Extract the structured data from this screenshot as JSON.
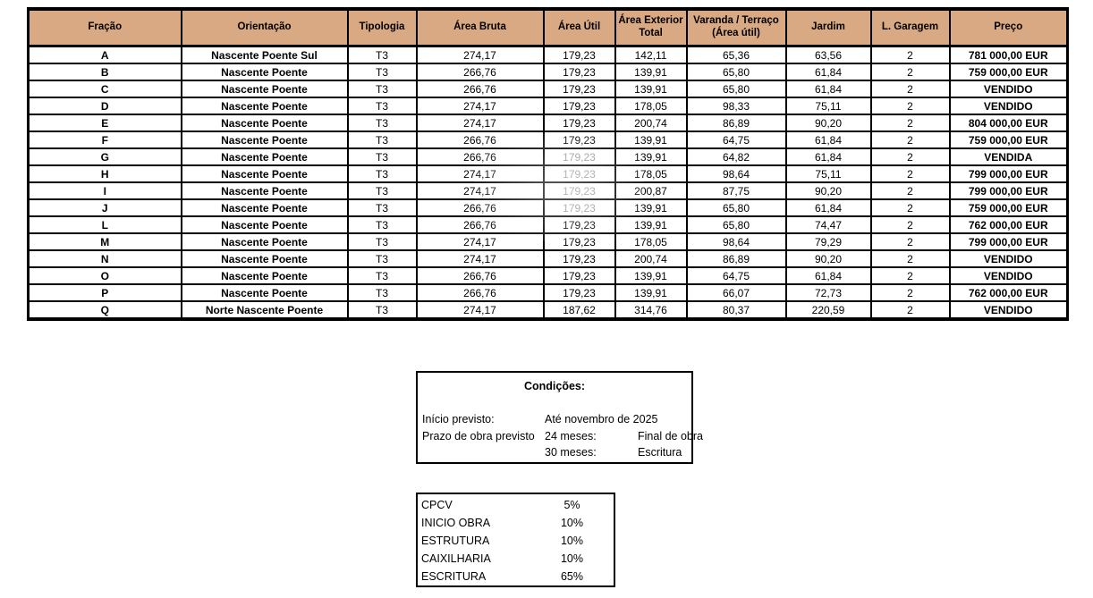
{
  "colors": {
    "header_bg": "#d8a982",
    "border": "#000000",
    "dim_text": "#98989a"
  },
  "table": {
    "columns": [
      {
        "key": "fracao",
        "label": "Fração"
      },
      {
        "key": "orientacao",
        "label": "Orientação"
      },
      {
        "key": "tipologia",
        "label": "Tipologia"
      },
      {
        "key": "area_bruta",
        "label": "Área Bruta"
      },
      {
        "key": "area_util",
        "label": "Área Útil"
      },
      {
        "key": "area_exterior",
        "label": "Área Exterior Total"
      },
      {
        "key": "varanda",
        "label": "Varanda / Terraço (Área útil)"
      },
      {
        "key": "jardim",
        "label": "Jardim"
      },
      {
        "key": "garagem",
        "label": "L. Garagem"
      },
      {
        "key": "preco",
        "label": "Preço"
      }
    ],
    "rows": [
      {
        "fracao": "A",
        "orientacao": "Nascente Poente Sul",
        "tipologia": "T3",
        "area_bruta": "274,17",
        "area_util": "179,23",
        "area_exterior": "142,11",
        "varanda": "65,36",
        "jardim": "63,56",
        "garagem": "2",
        "preco": "781 000,00 EUR"
      },
      {
        "fracao": "B",
        "orientacao": "Nascente Poente",
        "tipologia": "T3",
        "area_bruta": "266,76",
        "area_util": "179,23",
        "area_exterior": "139,91",
        "varanda": "65,80",
        "jardim": "61,84",
        "garagem": "2",
        "preco": "759 000,00 EUR"
      },
      {
        "fracao": "C",
        "orientacao": "Nascente Poente",
        "tipologia": "T3",
        "area_bruta": "266,76",
        "area_util": "179,23",
        "area_exterior": "139,91",
        "varanda": "65,80",
        "jardim": "61,84",
        "garagem": "2",
        "preco": "VENDIDO"
      },
      {
        "fracao": "D",
        "orientacao": "Nascente Poente",
        "tipologia": "T3",
        "area_bruta": "274,17",
        "area_util": "179,23",
        "area_exterior": "178,05",
        "varanda": "98,33",
        "jardim": "75,11",
        "garagem": "2",
        "preco": "VENDIDO"
      },
      {
        "fracao": "E",
        "orientacao": "Nascente Poente",
        "tipologia": "T3",
        "area_bruta": "274,17",
        "area_util": "179,23",
        "area_exterior": "200,74",
        "varanda": "86,89",
        "jardim": "90,20",
        "garagem": "2",
        "preco": "804 000,00 EUR"
      },
      {
        "fracao": "F",
        "orientacao": "Nascente Poente",
        "tipologia": "T3",
        "area_bruta": "266,76",
        "area_util": "179,23",
        "area_exterior": "139,91",
        "varanda": "64,75",
        "jardim": "61,84",
        "garagem": "2",
        "preco": "759 000,00 EUR"
      },
      {
        "fracao": "G",
        "orientacao": "Nascente Poente",
        "tipologia": "T3",
        "area_bruta": "266,76",
        "area_util": "179,23",
        "area_exterior": "139,91",
        "varanda": "64,82",
        "jardim": "61,84",
        "garagem": "2",
        "preco": "VENDIDA",
        "dim_util": true
      },
      {
        "fracao": "H",
        "orientacao": "Nascente Poente",
        "tipologia": "T3",
        "area_bruta": "274,17",
        "area_util": "179,23",
        "area_exterior": "178,05",
        "varanda": "98,64",
        "jardim": "75,11",
        "garagem": "2",
        "preco": "799 000,00 EUR",
        "dim_util": true
      },
      {
        "fracao": "I",
        "orientacao": "Nascente Poente",
        "tipologia": "T3",
        "area_bruta": "274,17",
        "area_util": "179,23",
        "area_exterior": "200,87",
        "varanda": "87,75",
        "jardim": "90,20",
        "garagem": "2",
        "preco": "799 000,00 EUR",
        "dim_util": true
      },
      {
        "fracao": "J",
        "orientacao": "Nascente Poente",
        "tipologia": "T3",
        "area_bruta": "266,76",
        "area_util": "179,23",
        "area_exterior": "139,91",
        "varanda": "65,80",
        "jardim": "61,84",
        "garagem": "2",
        "preco": "759 000,00 EUR",
        "dim_util": true
      },
      {
        "fracao": "L",
        "orientacao": "Nascente Poente",
        "tipologia": "T3",
        "area_bruta": "266,76",
        "area_util": "179,23",
        "area_exterior": "139,91",
        "varanda": "65,80",
        "jardim": "74,47",
        "garagem": "2",
        "preco": "762 000,00 EUR"
      },
      {
        "fracao": "M",
        "orientacao": "Nascente Poente",
        "tipologia": "T3",
        "area_bruta": "274,17",
        "area_util": "179,23",
        "area_exterior": "178,05",
        "varanda": "98,64",
        "jardim": "79,29",
        "garagem": "2",
        "preco": "799 000,00 EUR"
      },
      {
        "fracao": "N",
        "orientacao": "Nascente Poente",
        "tipologia": "T3",
        "area_bruta": "274,17",
        "area_util": "179,23",
        "area_exterior": "200,74",
        "varanda": "86,89",
        "jardim": "90,20",
        "garagem": "2",
        "preco": "VENDIDO"
      },
      {
        "fracao": "O",
        "orientacao": "Nascente Poente",
        "tipologia": "T3",
        "area_bruta": "266,76",
        "area_util": "179,23",
        "area_exterior": "139,91",
        "varanda": "64,75",
        "jardim": "61,84",
        "garagem": "2",
        "preco": "VENDIDO"
      },
      {
        "fracao": "P",
        "orientacao": "Nascente Poente",
        "tipologia": "T3",
        "area_bruta": "266,76",
        "area_util": "179,23",
        "area_exterior": "139,91",
        "varanda": "66,07",
        "jardim": "72,73",
        "garagem": "2",
        "preco": "762 000,00 EUR"
      },
      {
        "fracao": "Q",
        "orientacao": "Norte Nascente Poente",
        "tipologia": "T3",
        "area_bruta": "274,17",
        "area_util": "187,62",
        "area_exterior": "314,76",
        "varanda": "80,37",
        "jardim": "220,59",
        "garagem": "2",
        "preco": "VENDIDO"
      }
    ]
  },
  "conditions": {
    "title": "Condições:",
    "rows": [
      {
        "label": "Início previsto:",
        "col2": "Até novembro de 2025",
        "col3": ""
      },
      {
        "label": "Prazo de obra previsto",
        "col2": "24 meses:",
        "col3": "Final de obra"
      },
      {
        "label": "",
        "col2": "30 meses:",
        "col3": "Escritura"
      }
    ]
  },
  "payments": {
    "rows": [
      {
        "label": "CPCV",
        "value": "5%"
      },
      {
        "label": "INICIO OBRA",
        "value": "10%"
      },
      {
        "label": "ESTRUTURA",
        "value": "10%"
      },
      {
        "label": "CAIXILHARIA",
        "value": "10%"
      },
      {
        "label": "ESCRITURA",
        "value": "65%"
      }
    ]
  }
}
